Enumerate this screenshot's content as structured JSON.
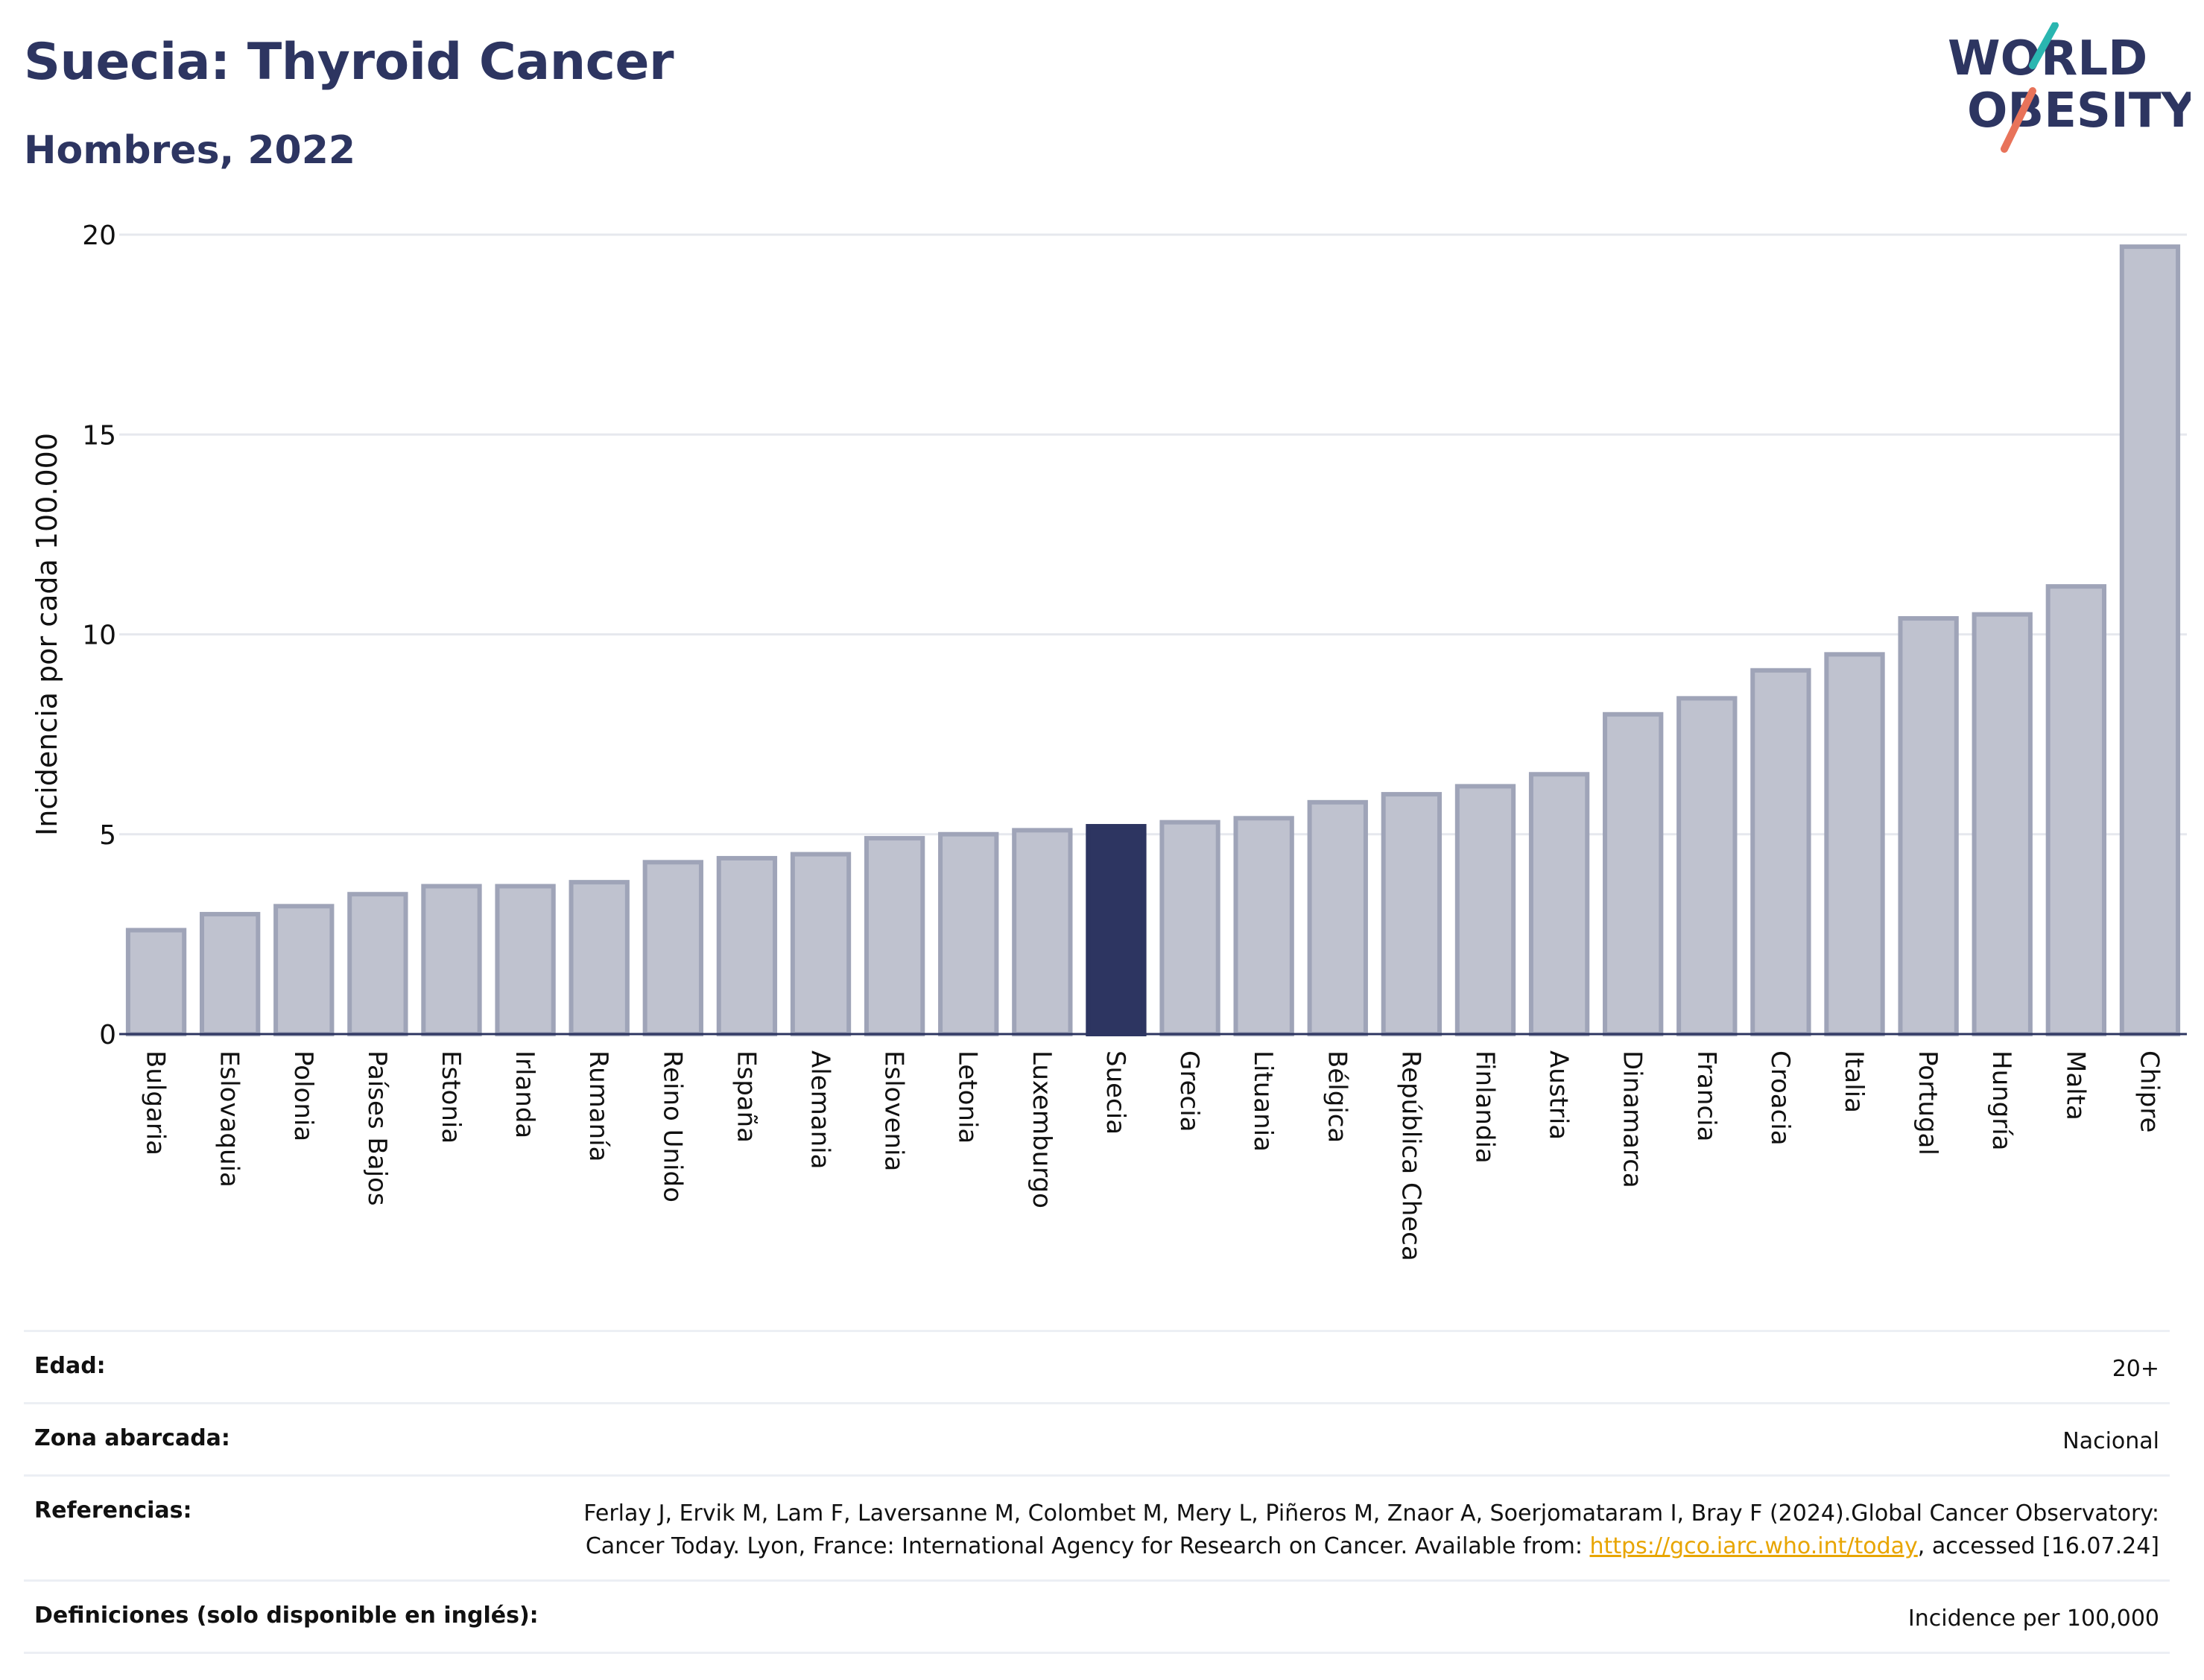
{
  "header": {
    "title": "Suecia: Thyroid Cancer",
    "subtitle": "Hombres, 2022"
  },
  "logo": {
    "line1": "WORLD",
    "line2": "OBESITY"
  },
  "colors": {
    "brand_navy": "#2d3561",
    "bar_default": "#bfc2cf",
    "bar_border": "#9fa4b8",
    "bar_highlight": "#2d3561",
    "logo_teal": "#2ab6b0",
    "logo_coral": "#e8735a",
    "grid": "#e6e8ee",
    "link": "#e8a500"
  },
  "chart_data": {
    "type": "bar",
    "ylabel": "Incidencia por cada 100.000",
    "ylim": [
      0,
      20
    ],
    "yticks": [
      "0",
      "5",
      "10",
      "15",
      "20"
    ],
    "highlight": "Suecia",
    "grid": true,
    "categories": [
      "Bulgaria",
      "Eslovaquia",
      "Polonia",
      "Países Bajos",
      "Estonia",
      "Irlanda",
      "Rumanía",
      "Reino Unido",
      "España",
      "Alemania",
      "Eslovenia",
      "Letonia",
      "Luxemburgo",
      "Suecia",
      "Grecia",
      "Lituania",
      "Bélgica",
      "República Checa",
      "Finlandia",
      "Austria",
      "Dinamarca",
      "Francia",
      "Croacia",
      "Italia",
      "Portugal",
      "Hungría",
      "Malta",
      "Chipre"
    ],
    "values": [
      2.6,
      3.0,
      3.2,
      3.5,
      3.7,
      3.7,
      3.8,
      4.3,
      4.4,
      4.5,
      4.9,
      5.0,
      5.1,
      5.2,
      5.3,
      5.4,
      5.8,
      6.0,
      6.2,
      6.5,
      8.0,
      8.4,
      9.1,
      9.5,
      10.4,
      10.5,
      11.2,
      19.7
    ]
  },
  "meta": {
    "age_label": "Edad:",
    "age_value": "20+",
    "area_label": "Zona abarcada:",
    "area_value": "Nacional",
    "ref_label": "Referencias:",
    "ref_text_1": "Ferlay J, Ervik M, Lam F, Laversanne M, Colombet M, Mery L, Piñeros M, Znaor A, Soerjomataram I, Bray F (2024).Global Cancer Observatory: Cancer Today. Lyon, France: International Agency for Research on Cancer. Available from: ",
    "ref_link": "https://gco.iarc.who.int/today",
    "ref_text_2": ", accessed [16.07.24]",
    "def_label": "Definiciones (solo disponible en inglés):",
    "def_value": "Incidence per 100,000"
  }
}
